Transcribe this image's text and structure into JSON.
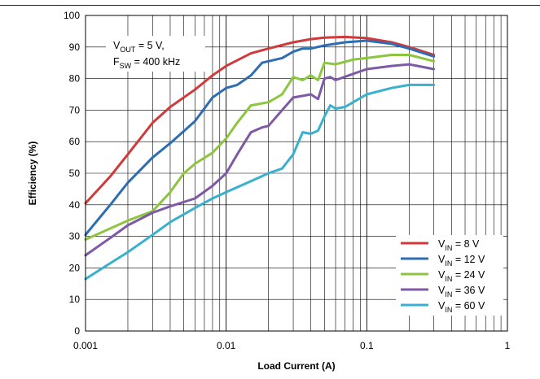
{
  "chart_data": {
    "type": "line",
    "xlabel": "Load Current (A)",
    "ylabel": "Efficiency (%)",
    "xscale": "log",
    "xlim": [
      0.001,
      1
    ],
    "ylim": [
      0,
      100
    ],
    "x_ticks": [
      "0.001",
      "0.01",
      "0.1",
      "1"
    ],
    "y_ticks": [
      "0",
      "10",
      "20",
      "30",
      "40",
      "50",
      "60",
      "70",
      "80",
      "90",
      "100"
    ],
    "grid": true,
    "legend_position": "bottom-right",
    "annotation": {
      "line1": {
        "main": "V",
        "sub": "OUT",
        "rest": " = 5 V,"
      },
      "line2": {
        "main": "F",
        "sub": "SW",
        "rest": " = 400 kHz"
      }
    },
    "series": [
      {
        "name": "VIN = 8 V",
        "label_main": "V",
        "label_sub": "IN",
        "label_rest": " = 8 V",
        "color": "#d03a3a",
        "x": [
          0.001,
          0.0015,
          0.002,
          0.003,
          0.004,
          0.006,
          0.008,
          0.01,
          0.015,
          0.02,
          0.03,
          0.04,
          0.05,
          0.07,
          0.1,
          0.15,
          0.2,
          0.3
        ],
        "y": [
          40.5,
          49,
          56,
          66,
          71,
          76.5,
          81,
          84,
          88,
          89.5,
          91.5,
          92.5,
          93,
          93.2,
          92.8,
          91.5,
          90,
          87.5
        ]
      },
      {
        "name": "VIN = 12 V",
        "label_main": "V",
        "label_sub": "IN",
        "label_rest": " = 12 V",
        "color": "#2e6db3",
        "x": [
          0.001,
          0.0015,
          0.002,
          0.003,
          0.004,
          0.006,
          0.008,
          0.01,
          0.012,
          0.015,
          0.018,
          0.02,
          0.025,
          0.03,
          0.035,
          0.04,
          0.05,
          0.07,
          0.1,
          0.15,
          0.2,
          0.3
        ],
        "y": [
          30.5,
          40,
          47,
          55,
          59.5,
          66.5,
          74,
          77,
          78,
          81,
          85,
          85.5,
          86.5,
          88.5,
          89.5,
          89.5,
          90.5,
          91.5,
          92,
          91,
          89.5,
          87
        ]
      },
      {
        "name": "VIN = 24 V",
        "label_main": "V",
        "label_sub": "IN",
        "label_rest": " = 24 V",
        "color": "#8cc63e",
        "x": [
          0.001,
          0.0015,
          0.002,
          0.003,
          0.004,
          0.005,
          0.006,
          0.008,
          0.01,
          0.012,
          0.015,
          0.02,
          0.025,
          0.03,
          0.035,
          0.04,
          0.045,
          0.05,
          0.06,
          0.08,
          0.1,
          0.15,
          0.2,
          0.3
        ],
        "y": [
          29,
          32.5,
          35,
          38,
          44,
          50,
          53,
          56.5,
          61,
          66,
          71.5,
          72.5,
          75,
          80.5,
          79.5,
          81,
          79.5,
          85,
          84.5,
          86,
          86.5,
          87.5,
          87.5,
          85.5
        ]
      },
      {
        "name": "VIN = 36 V",
        "label_main": "V",
        "label_sub": "IN",
        "label_rest": " = 36 V",
        "color": "#7e5aa6",
        "x": [
          0.001,
          0.0015,
          0.002,
          0.003,
          0.004,
          0.006,
          0.008,
          0.01,
          0.012,
          0.015,
          0.018,
          0.02,
          0.025,
          0.03,
          0.035,
          0.04,
          0.045,
          0.05,
          0.055,
          0.06,
          0.08,
          0.1,
          0.15,
          0.2,
          0.3
        ],
        "y": [
          24,
          29.5,
          33.5,
          37.5,
          39.5,
          42,
          46,
          50,
          56,
          63,
          64.5,
          65,
          70,
          74,
          74.5,
          75,
          73.5,
          80,
          80.5,
          79.5,
          81.5,
          83,
          84,
          84.5,
          83
        ]
      },
      {
        "name": "VIN = 60 V",
        "label_main": "V",
        "label_sub": "IN",
        "label_rest": " = 60 V",
        "color": "#3ab0cf",
        "x": [
          0.001,
          0.0015,
          0.002,
          0.003,
          0.004,
          0.006,
          0.008,
          0.01,
          0.015,
          0.02,
          0.025,
          0.03,
          0.035,
          0.04,
          0.045,
          0.05,
          0.055,
          0.06,
          0.07,
          0.08,
          0.1,
          0.15,
          0.2,
          0.3
        ],
        "y": [
          16.5,
          21.5,
          25,
          30.5,
          34.5,
          39,
          42,
          44,
          47.5,
          50,
          51.5,
          56,
          63,
          62.5,
          63.5,
          68,
          71.5,
          70.5,
          71,
          72.5,
          75,
          77,
          78,
          78
        ]
      }
    ]
  }
}
